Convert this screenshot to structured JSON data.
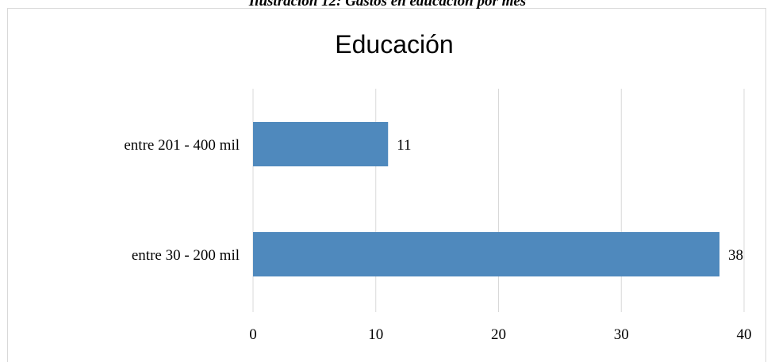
{
  "caption": "Ilustración 12: Gastos en educación por mes",
  "chart_data": {
    "type": "bar",
    "orientation": "horizontal",
    "title": "Educación",
    "categories": [
      "entre 201 - 400 mil",
      "entre 30 - 200 mil"
    ],
    "values": [
      11,
      38
    ],
    "xlim": [
      0,
      40
    ],
    "x_ticks": [
      0,
      10,
      20,
      30,
      40
    ],
    "xlabel": "",
    "ylabel": "",
    "grid": "vertical",
    "legend": "none",
    "data_labels": true,
    "bar_color": "#4f89bd",
    "gridline_color": "#d9d9d9"
  }
}
